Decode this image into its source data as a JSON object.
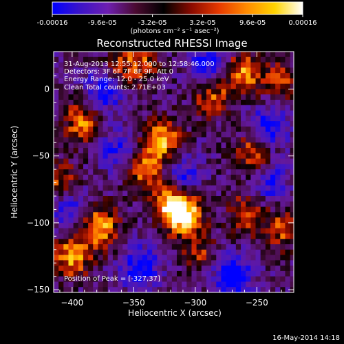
{
  "colorbar": {
    "ticks": [
      "-0.00016",
      "-9.6e-05",
      "-3.2e-05",
      "3.2e-05",
      "9.6e-05",
      "0.00016"
    ],
    "unit_label": "(photons cm⁻² s⁻¹ asec⁻²)",
    "colors": [
      "#0000ff",
      "#3c14c8",
      "#6e1fb0",
      "#4a0a30",
      "#000000",
      "#8a0a00",
      "#e83a00",
      "#ff8c00",
      "#ffd400",
      "#ffffff"
    ]
  },
  "chart_data": {
    "type": "heatmap",
    "title": "Reconstructed RHESSI Image",
    "xlabel": "Heliocentric X (arcsec)",
    "ylabel": "Heliocentric Y (arcsec)",
    "xlim": [
      -415,
      -220
    ],
    "ylim": [
      -152,
      28
    ],
    "x_ticks": [
      -400,
      -350,
      -300,
      -250
    ],
    "y_ticks": [
      0,
      -50,
      -100,
      -150
    ],
    "x_tick_labels": [
      "−400",
      "−350",
      "−300",
      "−250"
    ],
    "y_tick_labels": [
      "0",
      "−50",
      "−100",
      "−150"
    ],
    "annotations": [
      "31-Aug-2013 12:55:12.000 to 12:58:46.000",
      "Detectors: 3F 6F 7F 8F 9F, Att 0",
      "Energy Range: 12.0 - 25.0 keV",
      "Clean    Total counts: 2.71E+03"
    ],
    "peak_label": "Position of Peak = [-327,37]",
    "peak": [
      -327,
      37
    ],
    "hotspots": [
      {
        "x": -310,
        "y": -93,
        "v": 1.0
      },
      {
        "x": -320,
        "y": -85,
        "v": 0.75
      },
      {
        "x": -378,
        "y": -103,
        "v": 0.9
      },
      {
        "x": -400,
        "y": -125,
        "v": 0.8
      },
      {
        "x": -262,
        "y": 12,
        "v": 0.8
      },
      {
        "x": -287,
        "y": -3,
        "v": 0.7
      },
      {
        "x": -327,
        "y": -38,
        "v": 0.85
      },
      {
        "x": -340,
        "y": -62,
        "v": 0.7
      },
      {
        "x": -392,
        "y": -25,
        "v": 0.7
      },
      {
        "x": -253,
        "y": -48,
        "v": 0.65
      },
      {
        "x": -365,
        "y": 12,
        "v": 0.6
      },
      {
        "x": -410,
        "y": -70,
        "v": 0.6
      },
      {
        "x": -230,
        "y": -105,
        "v": 0.55
      },
      {
        "x": -258,
        "y": -92,
        "v": 0.55
      },
      {
        "x": -297,
        "y": -122,
        "v": 0.45
      },
      {
        "x": -345,
        "y": 20,
        "v": 0.55
      },
      {
        "x": -230,
        "y": 5,
        "v": 0.5
      }
    ],
    "coldspots": [
      {
        "x": -372,
        "y": 2,
        "v": -0.9
      },
      {
        "x": -288,
        "y": 15,
        "v": -0.8
      },
      {
        "x": -240,
        "y": -28,
        "v": -0.7
      },
      {
        "x": -270,
        "y": -140,
        "v": -0.85
      },
      {
        "x": -345,
        "y": -133,
        "v": -0.7
      },
      {
        "x": -402,
        "y": -88,
        "v": -0.55
      },
      {
        "x": -312,
        "y": -66,
        "v": -0.6
      },
      {
        "x": -365,
        "y": -45,
        "v": -0.5
      },
      {
        "x": -240,
        "y": -70,
        "v": -0.55
      }
    ]
  },
  "footer": {
    "timestamp": "16-May-2014 14:18"
  }
}
